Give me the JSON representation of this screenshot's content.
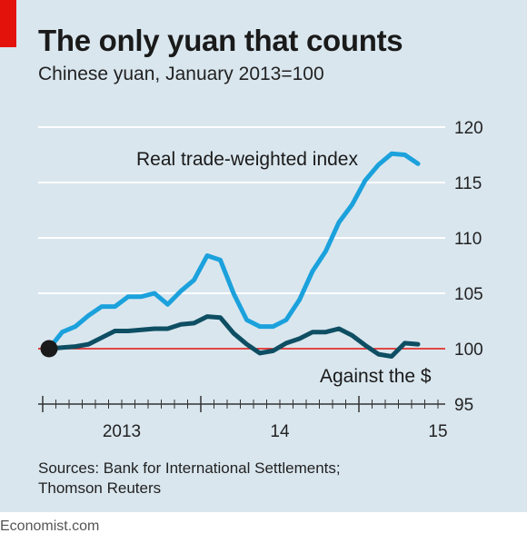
{
  "header": {
    "title": "The only yuan that counts",
    "subtitle": "Chinese yuan, January 2013=100"
  },
  "chart_data": {
    "type": "line",
    "title": "The only yuan that counts",
    "subtitle": "Chinese yuan, January 2013=100",
    "ylim": [
      95,
      120
    ],
    "yticks": [
      95,
      100,
      105,
      110,
      115,
      120
    ],
    "ytick_labels": [
      "95",
      "100",
      "105",
      "110",
      "115",
      "120"
    ],
    "xlim": [
      "2013-01",
      "2015-06"
    ],
    "xtick_labels": [
      {
        "label": "2013",
        "x": "2013-07"
      },
      {
        "label": "14",
        "x": "2014-07"
      },
      {
        "label": "15",
        "x": "2015-07"
      }
    ],
    "grid": true,
    "reference_line": 100,
    "colors": {
      "Real trade-weighted index": "#1ba1dc",
      "Against the $": "#0e4e63",
      "reference": "#e3120b",
      "grid": "#ffffff"
    },
    "series": [
      {
        "name": "Real trade-weighted index",
        "x": [
          "2013-01",
          "2013-02",
          "2013-03",
          "2013-04",
          "2013-05",
          "2013-06",
          "2013-07",
          "2013-08",
          "2013-09",
          "2013-10",
          "2013-11",
          "2013-12",
          "2014-01",
          "2014-02",
          "2014-03",
          "2014-04",
          "2014-05",
          "2014-06",
          "2014-07",
          "2014-08",
          "2014-09",
          "2014-10",
          "2014-11",
          "2014-12",
          "2015-01",
          "2015-02",
          "2015-03",
          "2015-04",
          "2015-05"
        ],
        "values": [
          100.0,
          101.5,
          102.0,
          103.0,
          103.8,
          103.8,
          104.7,
          104.7,
          105.0,
          104.0,
          105.2,
          106.2,
          108.4,
          108.0,
          105.0,
          102.6,
          102.0,
          102.0,
          102.6,
          104.4,
          107.0,
          108.8,
          111.4,
          113.0,
          115.2,
          116.6,
          117.6,
          117.5,
          116.7
        ]
      },
      {
        "name": "Against the $",
        "x": [
          "2013-01",
          "2013-02",
          "2013-03",
          "2013-04",
          "2013-05",
          "2013-06",
          "2013-07",
          "2013-08",
          "2013-09",
          "2013-10",
          "2013-11",
          "2013-12",
          "2014-01",
          "2014-02",
          "2014-03",
          "2014-04",
          "2014-05",
          "2014-06",
          "2014-07",
          "2014-08",
          "2014-09",
          "2014-10",
          "2014-11",
          "2014-12",
          "2015-01",
          "2015-02",
          "2015-03",
          "2015-04",
          "2015-05"
        ],
        "values": [
          100.0,
          100.1,
          100.2,
          100.4,
          101.0,
          101.6,
          101.6,
          101.7,
          101.8,
          101.8,
          102.2,
          102.3,
          102.9,
          102.8,
          101.4,
          100.4,
          99.6,
          99.8,
          100.5,
          100.9,
          101.5,
          101.5,
          101.8,
          101.2,
          100.3,
          99.5,
          99.3,
          100.5,
          100.4
        ]
      }
    ],
    "annotations": [
      {
        "text": "Real trade-weighted index",
        "series": "Real trade-weighted index"
      },
      {
        "text": "Against the $",
        "series": "Against the $"
      }
    ]
  },
  "source": {
    "line1": "Sources: Bank for International Settlements;",
    "line2": "Thomson Reuters"
  },
  "footer": {
    "brand": "Economist.com"
  }
}
